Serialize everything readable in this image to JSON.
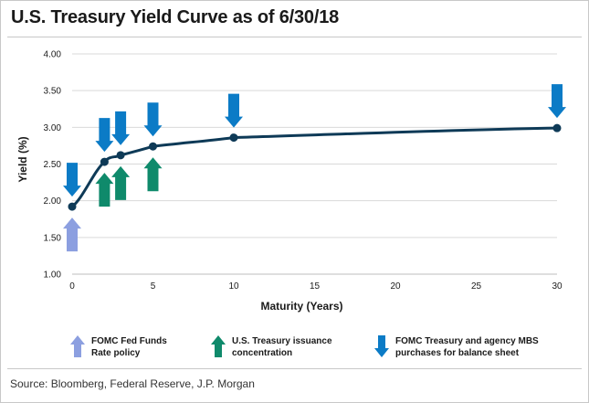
{
  "title": "U.S. Treasury Yield Curve as of 6/30/18",
  "source": "Source: Bloomberg, Federal Reserve, J.P. Morgan",
  "colors": {
    "curve": "#0e3a57",
    "fed_funds": "#8c9fe0",
    "treasury": "#0f8a6b",
    "fomc": "#0b7bc6"
  },
  "chart_data": {
    "type": "line",
    "xlabel": "Maturity (Years)",
    "ylabel": "Yield (%)",
    "xlim": [
      0,
      30
    ],
    "ylim": [
      1.0,
      4.0
    ],
    "x_ticks": [
      "0",
      "5",
      "10",
      "15",
      "20",
      "25",
      "30"
    ],
    "y_ticks": [
      "1.00",
      "1.50",
      "2.00",
      "2.50",
      "3.00",
      "3.50",
      "4.00"
    ],
    "grid": "horizontal",
    "series": [
      {
        "points": [
          {
            "x": 0,
            "y": 1.92
          },
          {
            "x": 2,
            "y": 2.53
          },
          {
            "x": 3,
            "y": 2.62
          },
          {
            "x": 5,
            "y": 2.74
          },
          {
            "x": 10,
            "y": 2.86
          },
          {
            "x": 30,
            "y": 2.99
          }
        ]
      }
    ],
    "annotations": [
      {
        "x": 0,
        "type": "fed_funds",
        "direction": "up"
      },
      {
        "x": 0,
        "type": "fomc",
        "direction": "down"
      },
      {
        "x": 2,
        "type": "treasury",
        "direction": "up"
      },
      {
        "x": 2,
        "type": "fomc",
        "direction": "down"
      },
      {
        "x": 3,
        "type": "treasury",
        "direction": "up"
      },
      {
        "x": 3,
        "type": "fomc",
        "direction": "down"
      },
      {
        "x": 5,
        "type": "treasury",
        "direction": "up"
      },
      {
        "x": 5,
        "type": "fomc",
        "direction": "down"
      },
      {
        "x": 10,
        "type": "fomc",
        "direction": "down"
      },
      {
        "x": 30,
        "type": "fomc",
        "direction": "down"
      }
    ]
  },
  "legend": [
    {
      "key": "fed_funds",
      "label_line1": "FOMC Fed Funds",
      "label_line2": "Rate policy",
      "direction": "up"
    },
    {
      "key": "treasury",
      "label_line1": "U.S. Treasury issuance",
      "label_line2": "concentration",
      "direction": "up"
    },
    {
      "key": "fomc",
      "label_line1": "FOMC Treasury and agency MBS",
      "label_line2": "purchases for balance sheet",
      "direction": "down"
    }
  ]
}
